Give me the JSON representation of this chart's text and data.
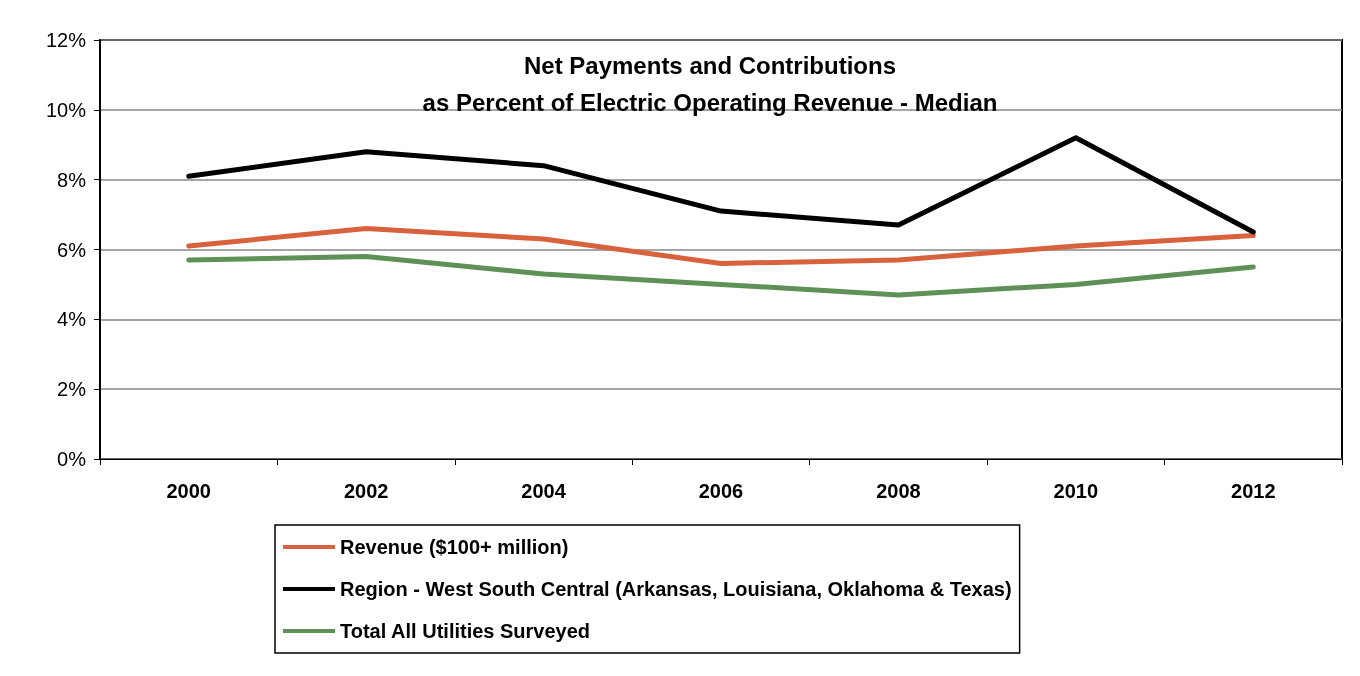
{
  "chart_data": {
    "type": "line",
    "title": "Net Payments and Contributions\nas Percent of Electric Operating Revenue - Median",
    "categories": [
      "2000",
      "2002",
      "2004",
      "2006",
      "2008",
      "2010",
      "2012"
    ],
    "series": [
      {
        "name": "Revenue ($100+ million)",
        "color": "#d9623e",
        "values": [
          6.1,
          6.6,
          6.3,
          5.6,
          5.7,
          6.1,
          6.4
        ]
      },
      {
        "name": "Region - West South Central (Arkansas, Louisiana, Oklahoma & Texas)",
        "color": "#000000",
        "values": [
          8.1,
          8.8,
          8.4,
          7.1,
          6.7,
          9.2,
          6.5
        ]
      },
      {
        "name": "Total All Utilities Surveyed",
        "color": "#5f9058",
        "values": [
          5.7,
          5.8,
          5.3,
          5.0,
          4.7,
          5.0,
          5.5
        ]
      }
    ],
    "ylim": [
      0,
      12
    ],
    "yticks": [
      {
        "value": 0,
        "label": "0%"
      },
      {
        "value": 2,
        "label": "2%"
      },
      {
        "value": 4,
        "label": "4%"
      },
      {
        "value": 6,
        "label": "6%"
      },
      {
        "value": 8,
        "label": "8%"
      },
      {
        "value": 10,
        "label": "10%"
      },
      {
        "value": 12,
        "label": "12%"
      }
    ],
    "grid": "y",
    "legend": "bottom",
    "marker": "none",
    "line_style": "solid"
  }
}
